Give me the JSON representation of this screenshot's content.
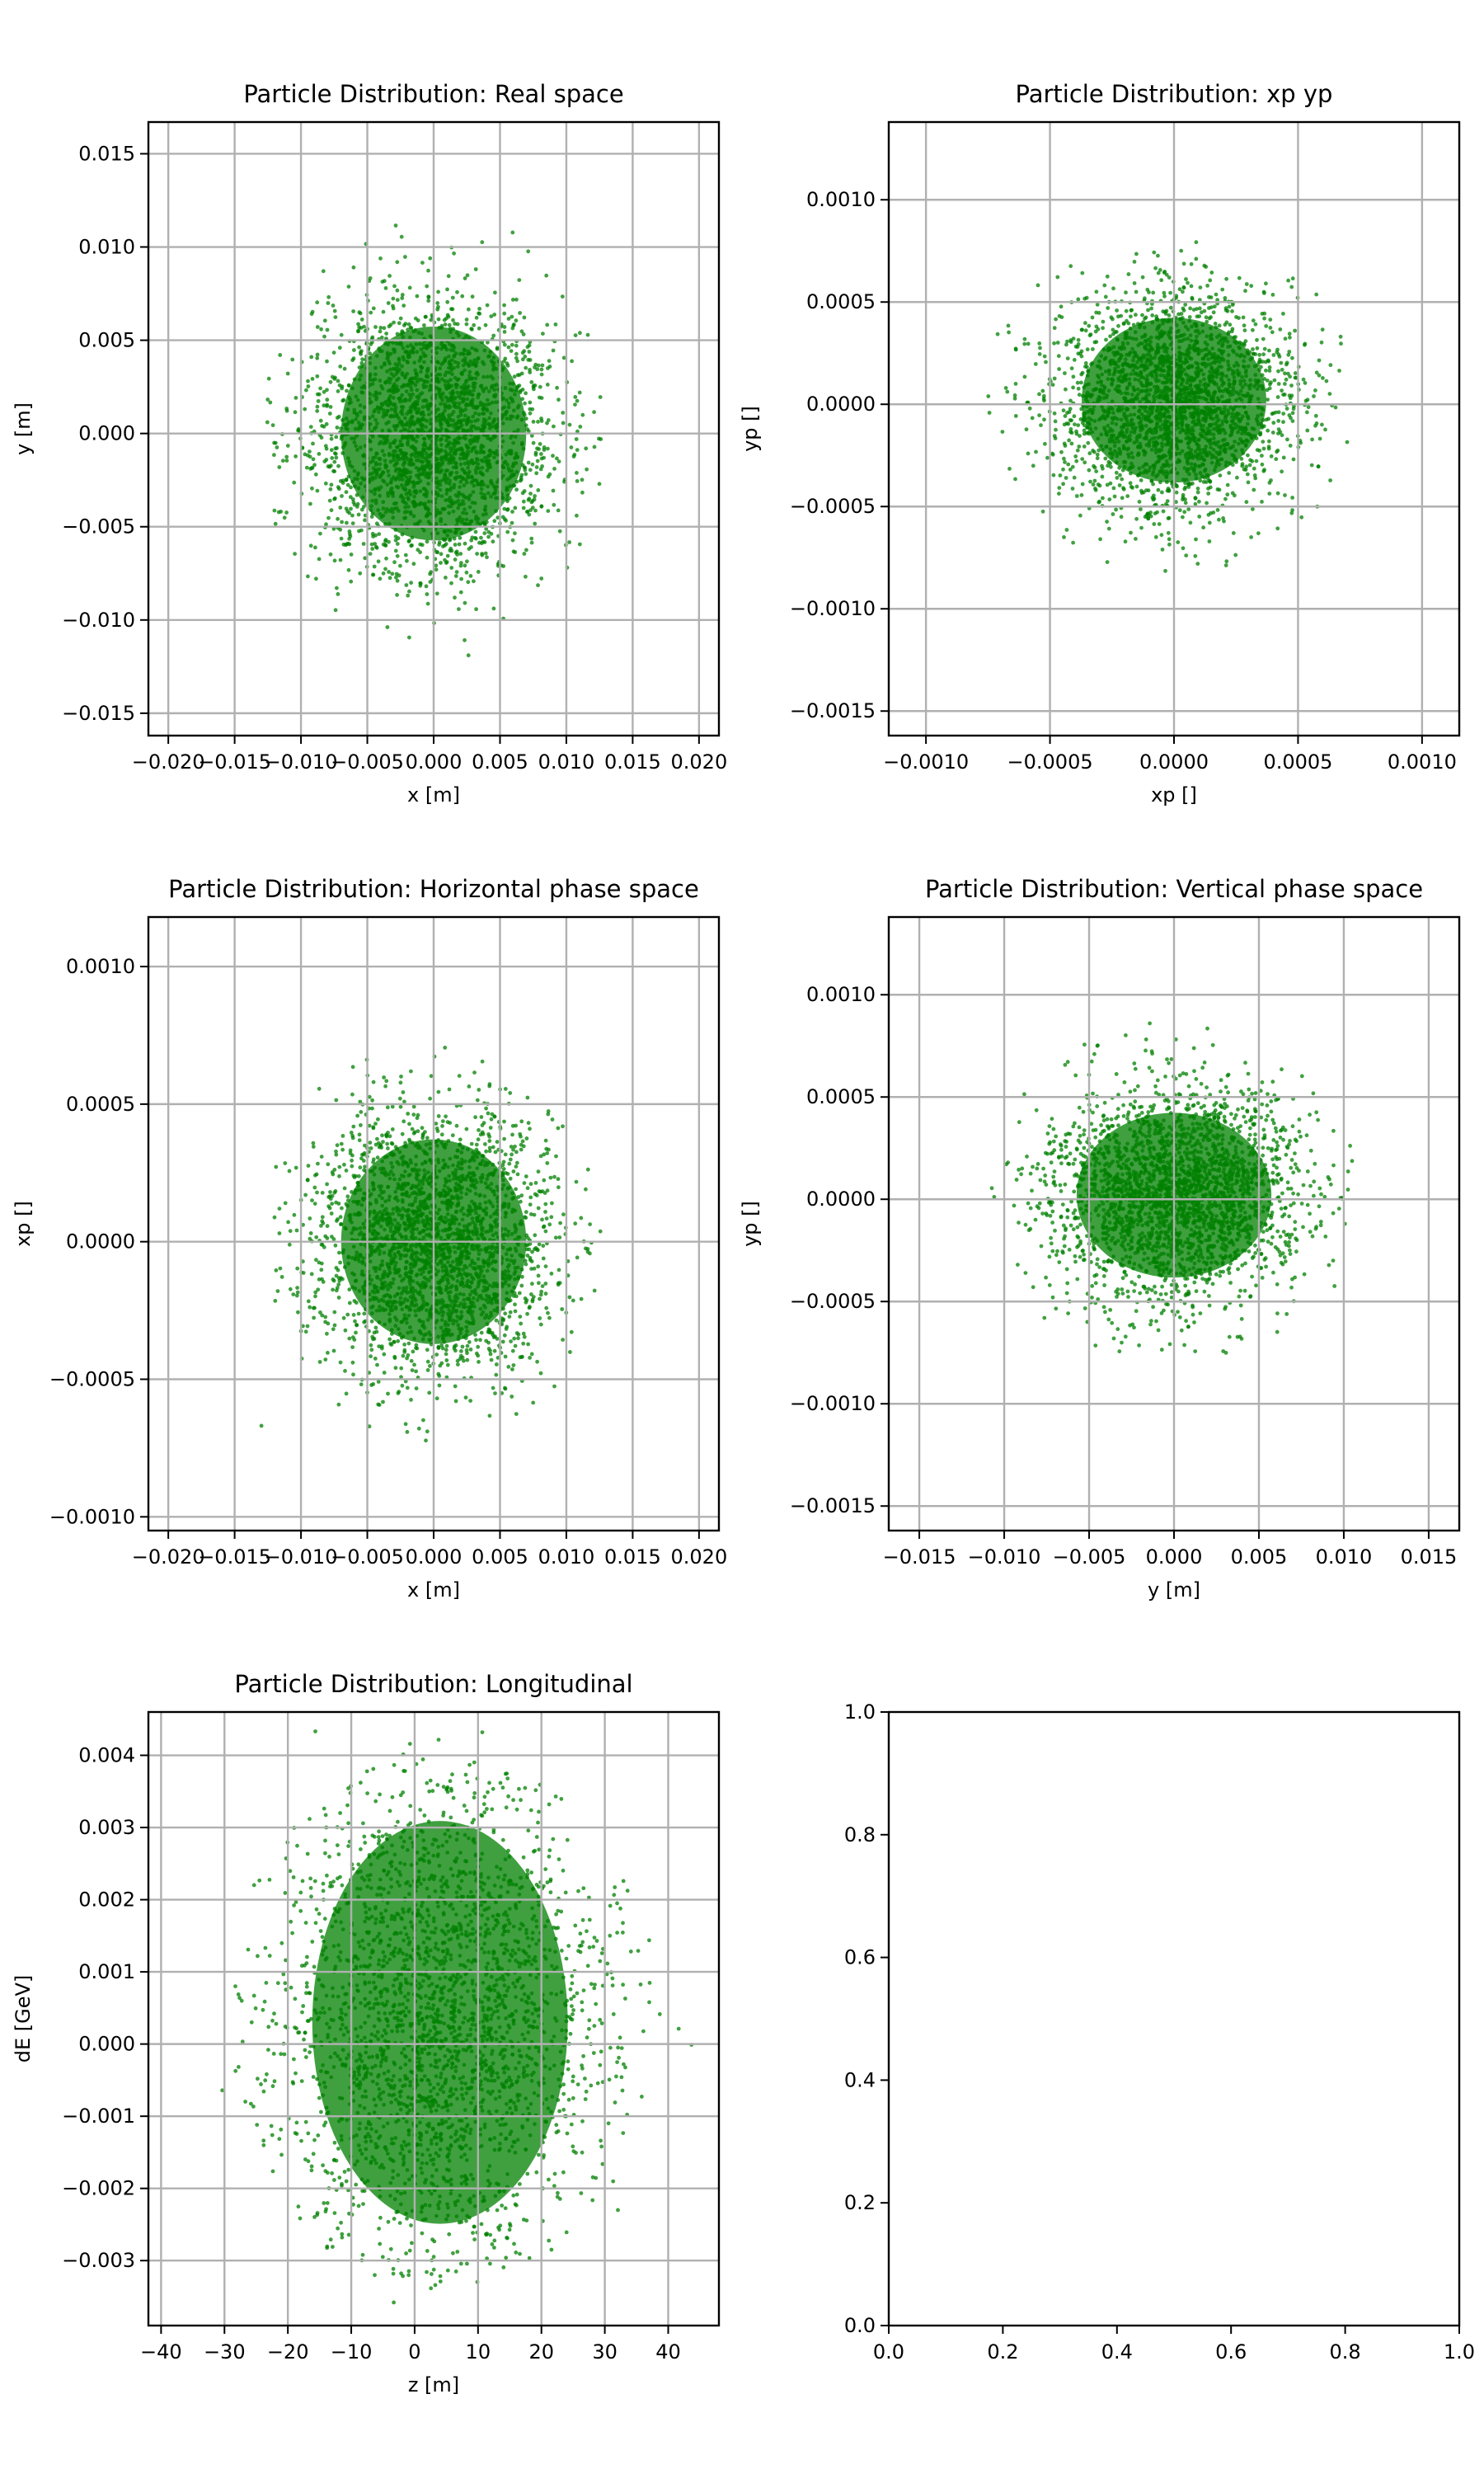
{
  "figure": {
    "colors": {
      "points": "#008000",
      "grid": "#b0b0b0",
      "axes": "#000000",
      "background": "#ffffff"
    }
  },
  "chart_data": [
    {
      "type": "scatter",
      "title": "Particle Distribution: Real space",
      "xlabel": "x [m]",
      "ylabel": "y [m]",
      "xlim": [
        -0.0215,
        0.0215
      ],
      "ylim": [
        -0.0162,
        0.0167
      ],
      "xticks": [
        -0.02,
        -0.015,
        -0.01,
        -0.005,
        0.0,
        0.005,
        0.01,
        0.015,
        0.02
      ],
      "xtick_labels": [
        "−0.020",
        "−0.015",
        "−0.010",
        "−0.005",
        "0.000",
        "0.005",
        "0.010",
        "0.015",
        "0.020"
      ],
      "yticks": [
        -0.015,
        -0.01,
        -0.005,
        0.0,
        0.005,
        0.01,
        0.015
      ],
      "ytick_labels": [
        "−0.015",
        "−0.010",
        "−0.005",
        "0.000",
        "0.005",
        "0.010",
        "0.015"
      ],
      "grid": true,
      "cloud": {
        "center": [
          0.0,
          0.0
        ],
        "sigma": [
          0.0045,
          0.0037
        ],
        "extent": [
          0.013,
          0.0122
        ]
      }
    },
    {
      "type": "scatter",
      "title": "Particle Distribution: xp yp",
      "xlabel": "xp []",
      "ylabel": "yp []",
      "xlim": [
        -0.00115,
        0.00115
      ],
      "ylim": [
        -0.00162,
        0.00138
      ],
      "xticks": [
        -0.001,
        -0.0005,
        0.0,
        0.0005,
        0.001
      ],
      "xtick_labels": [
        "−0.0010",
        "−0.0005",
        "0.0000",
        "0.0005",
        "0.0010"
      ],
      "yticks": [
        -0.0015,
        -0.001,
        -0.0005,
        0.0,
        0.0005,
        0.001
      ],
      "ytick_labels": [
        "−0.0015",
        "−0.0010",
        "−0.0005",
        "0.0000",
        "0.0005",
        "0.0010"
      ],
      "grid": true,
      "cloud": {
        "center": [
          0.0,
          2e-05
        ],
        "sigma": [
          0.00024,
          0.00026
        ],
        "extent": [
          0.00078,
          0.00085
        ]
      }
    },
    {
      "type": "scatter",
      "title": "Particle Distribution: Horizontal phase space",
      "xlabel": "x [m]",
      "ylabel": "xp []",
      "xlim": [
        -0.0215,
        0.0215
      ],
      "ylim": [
        -0.00105,
        0.00118
      ],
      "xticks": [
        -0.02,
        -0.015,
        -0.01,
        -0.005,
        0.0,
        0.005,
        0.01,
        0.015,
        0.02
      ],
      "xtick_labels": [
        "−0.020",
        "−0.015",
        "−0.010",
        "−0.005",
        "0.000",
        "0.005",
        "0.010",
        "0.015",
        "0.020"
      ],
      "yticks": [
        -0.001,
        -0.0005,
        0.0,
        0.0005,
        0.001
      ],
      "ytick_labels": [
        "−0.0010",
        "−0.0005",
        "0.0000",
        "0.0005",
        "0.0010"
      ],
      "grid": true,
      "cloud": {
        "center": [
          0.0,
          0.0
        ],
        "sigma": [
          0.0045,
          0.00024
        ],
        "extent": [
          0.013,
          0.00075
        ]
      }
    },
    {
      "type": "scatter",
      "title": "Particle Distribution: Vertical phase space",
      "xlabel": "y [m]",
      "ylabel": "yp []",
      "xlim": [
        -0.0168,
        0.0168
      ],
      "ylim": [
        -0.00162,
        0.00138
      ],
      "xticks": [
        -0.015,
        -0.01,
        -0.005,
        0.0,
        0.005,
        0.01,
        0.015
      ],
      "xtick_labels": [
        "−0.015",
        "−0.010",
        "−0.005",
        "0.000",
        "0.005",
        "0.010",
        "0.015"
      ],
      "yticks": [
        -0.0015,
        -0.001,
        -0.0005,
        0.0,
        0.0005,
        0.001
      ],
      "ytick_labels": [
        "−0.0015",
        "−0.0010",
        "−0.0005",
        "0.0000",
        "0.0005",
        "0.0010"
      ],
      "grid": true,
      "cloud": {
        "center": [
          0.0,
          2e-05
        ],
        "sigma": [
          0.0037,
          0.00026
        ],
        "extent": [
          0.011,
          0.00085
        ]
      }
    },
    {
      "type": "scatter",
      "title": "Particle Distribution: Longitudinal",
      "xlabel": "z [m]",
      "ylabel": "dE [GeV]",
      "xlim": [
        -42,
        48
      ],
      "ylim": [
        -0.0039,
        0.0046
      ],
      "xticks": [
        -40,
        -30,
        -20,
        -10,
        0,
        10,
        20,
        30,
        40
      ],
      "xtick_labels": [
        "−40",
        "−30",
        "−20",
        "−10",
        "0",
        "10",
        "20",
        "30",
        "40"
      ],
      "yticks": [
        -0.003,
        -0.002,
        -0.001,
        0.0,
        0.001,
        0.002,
        0.003,
        0.004
      ],
      "ytick_labels": [
        "−0.003",
        "−0.002",
        "−0.001",
        "0.000",
        "0.001",
        "0.002",
        "0.003",
        "0.004"
      ],
      "grid": true,
      "cloud": {
        "center": [
          4,
          0.0003
        ],
        "sigma": [
          13,
          0.0018
        ],
        "extent": [
          35,
          0.0037
        ]
      }
    },
    {
      "type": "scatter",
      "title": "",
      "xlabel": "",
      "ylabel": "",
      "xlim": [
        0,
        1
      ],
      "ylim": [
        0,
        1
      ],
      "xticks": [
        0,
        0.2,
        0.4,
        0.6,
        0.8,
        1.0
      ],
      "xtick_labels": [
        "0.0",
        "0.2",
        "0.4",
        "0.6",
        "0.8",
        "1.0"
      ],
      "yticks": [
        0,
        0.2,
        0.4,
        0.6,
        0.8,
        1.0
      ],
      "ytick_labels": [
        "0.0",
        "0.2",
        "0.4",
        "0.6",
        "0.8",
        "1.0"
      ],
      "grid": false,
      "cloud": null
    }
  ]
}
